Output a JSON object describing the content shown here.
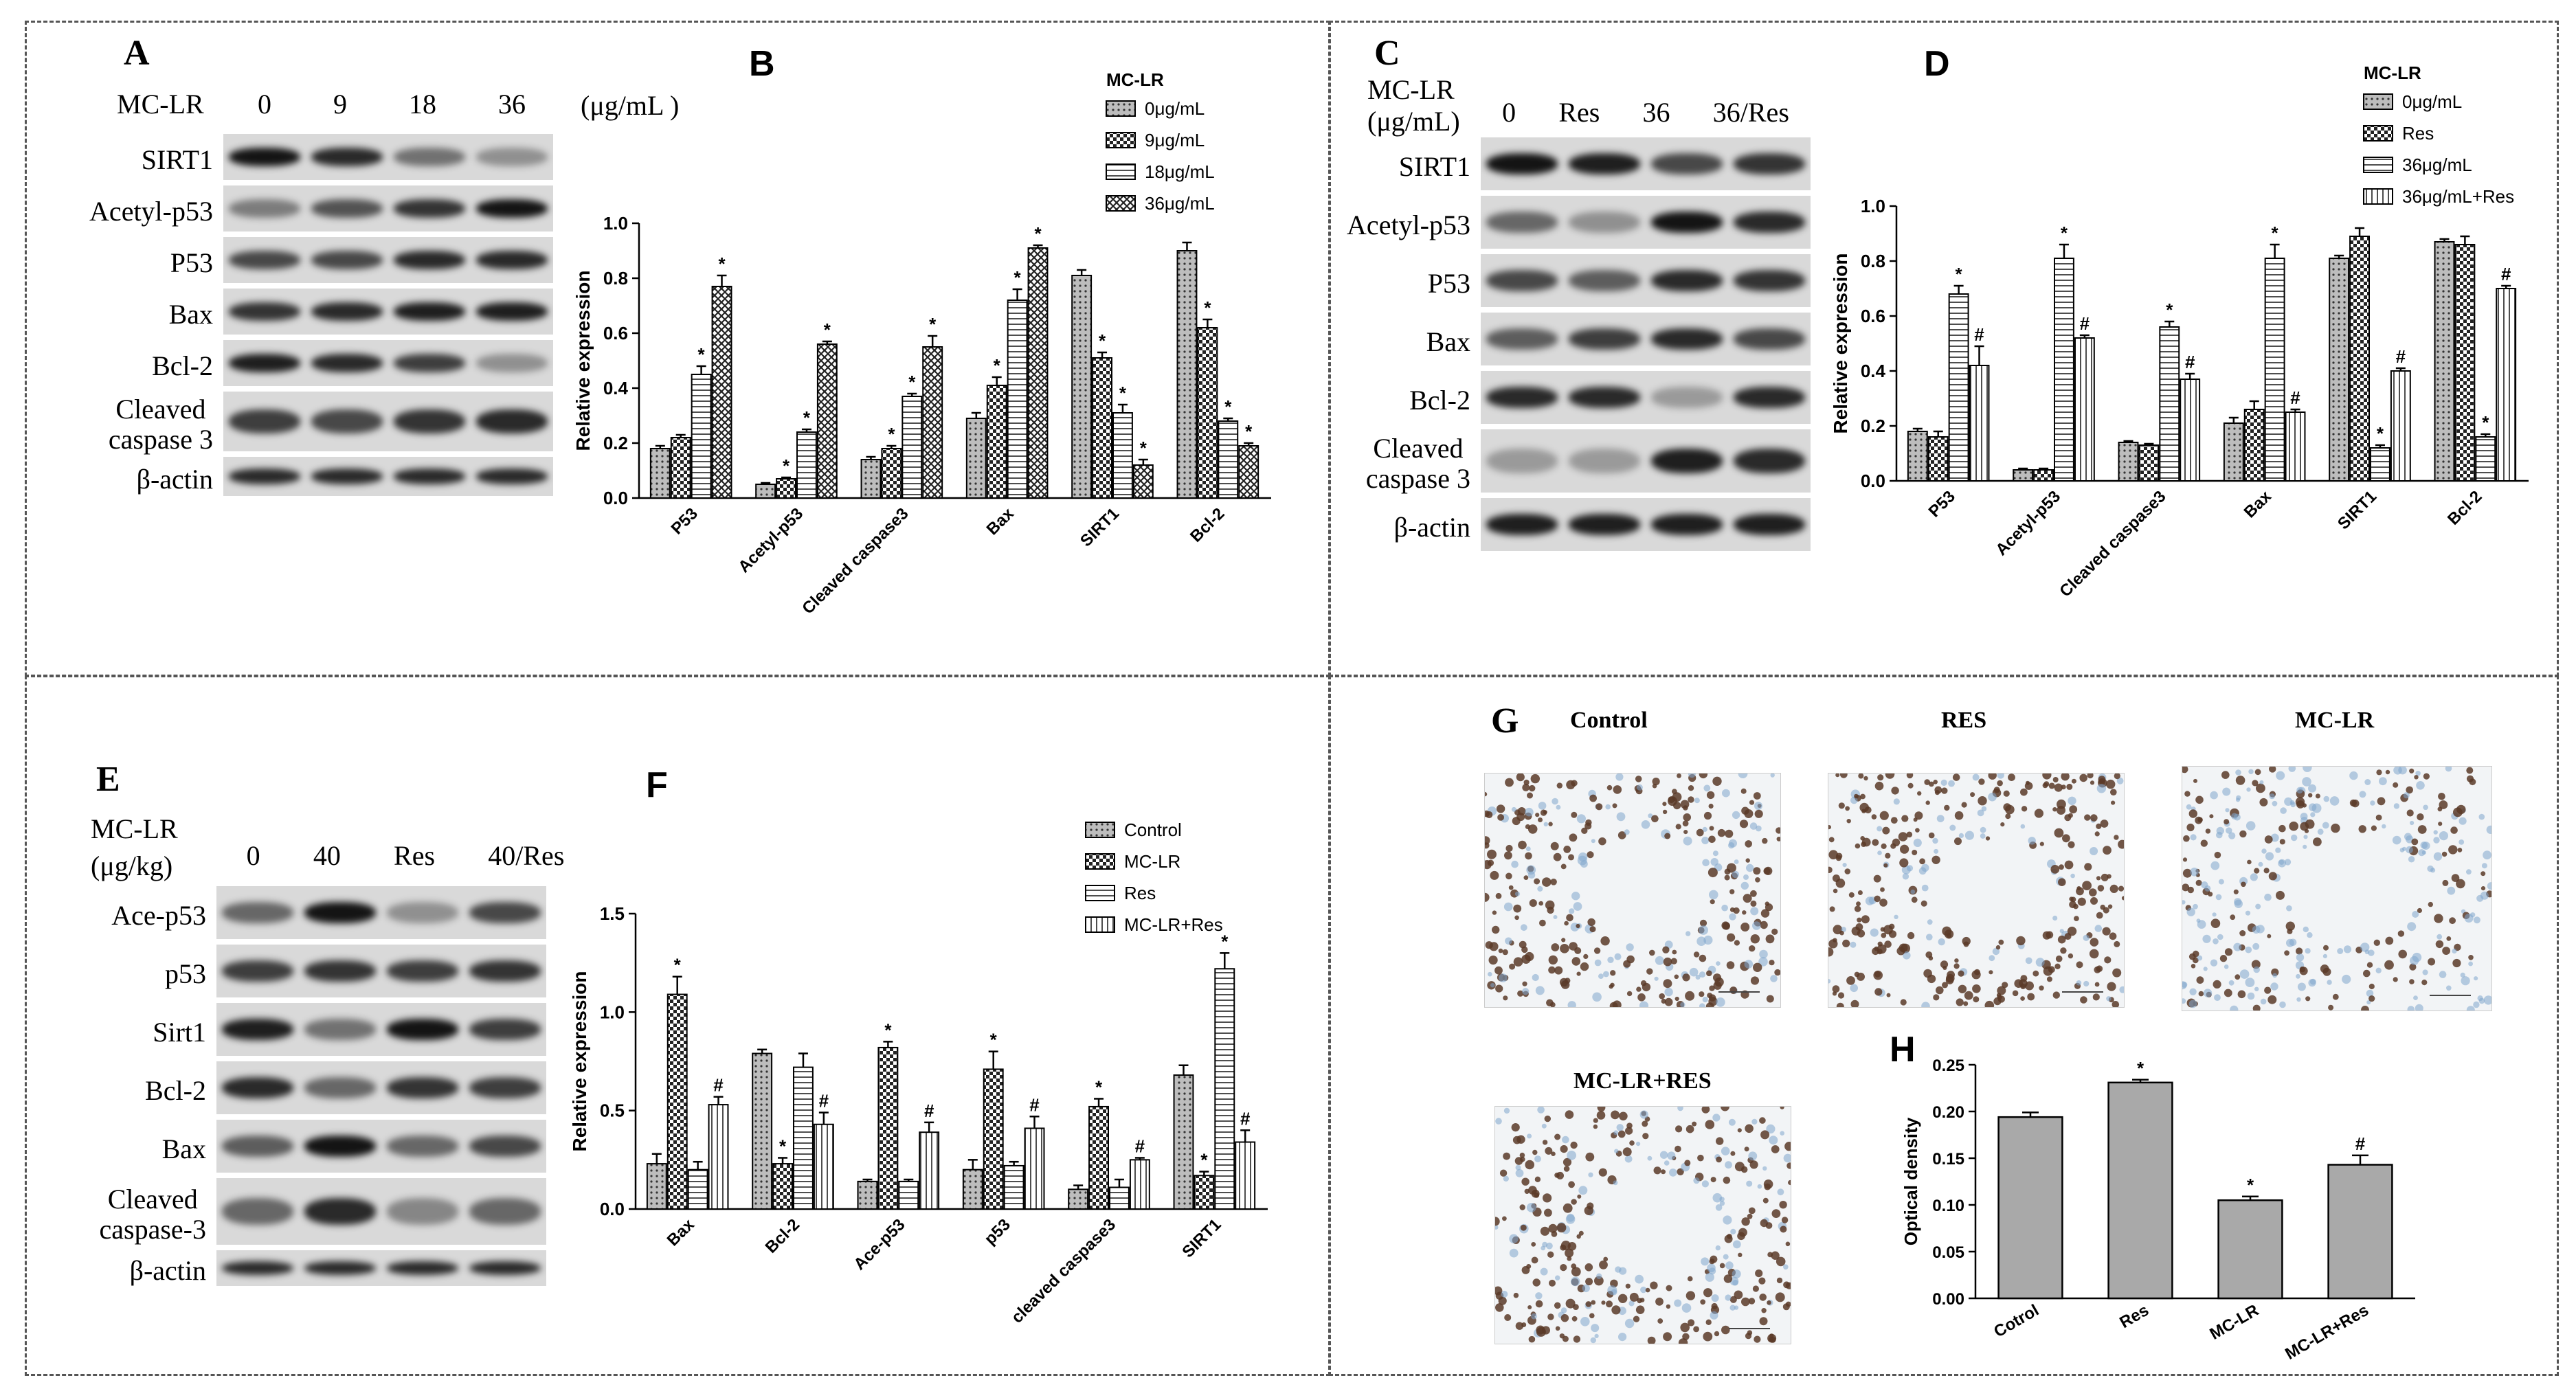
{
  "panels": {
    "A": {
      "label": "A",
      "treatment_label": "MC-LR",
      "doses": [
        "0",
        "9",
        "18",
        "36"
      ],
      "unit": "(μg/mL )",
      "blots": [
        "SIRT1",
        "Acetyl-p53",
        "P53",
        "Bax",
        "Bcl-2",
        "Cleaved\ncaspase 3",
        "β-actin"
      ]
    },
    "C": {
      "label": "C",
      "treatment_label": "MC-LR\n(μg/mL)",
      "groups": [
        "0",
        "Res",
        "36",
        "36/Res"
      ],
      "blots": [
        "SIRT1",
        "Acetyl-p53",
        "P53",
        "Bax",
        "Bcl-2",
        "Cleaved\ncaspase 3",
        "β-actin"
      ]
    },
    "E": {
      "label": "E",
      "treatment_label": "MC-LR\n(μg/kg)",
      "groups": [
        "0",
        "40",
        "Res",
        "40/Res"
      ],
      "blots": [
        "Ace-p53",
        "p53",
        "Sirt1",
        "Bcl-2",
        "Bax",
        "Cleaved\ncaspase-3",
        "β-actin"
      ]
    },
    "G": {
      "label": "G",
      "images": [
        "Control",
        "RES",
        "MC-LR",
        "MC-LR+RES"
      ]
    }
  },
  "chart_data": [
    {
      "panel": "B",
      "type": "bar",
      "legend_title": "MC-LR",
      "ylabel": "Relative expression",
      "ylim": [
        0,
        1.0
      ],
      "yticks": [
        "0.0",
        "0.2",
        "0.4",
        "0.6",
        "0.8",
        "1.0"
      ],
      "categories": [
        "P53",
        "Acetyl-p53",
        "Cleaved caspase3",
        "Bax",
        "SIRT1",
        "Bcl-2"
      ],
      "series": [
        {
          "name": "0μg/mL",
          "pattern": "dots",
          "values": [
            0.18,
            0.05,
            0.14,
            0.29,
            0.81,
            0.9
          ],
          "errors": [
            0.01,
            0.005,
            0.01,
            0.02,
            0.02,
            0.03
          ],
          "marks": [
            "",
            "",
            "",
            "",
            "",
            ""
          ]
        },
        {
          "name": "9μg/mL",
          "pattern": "check",
          "values": [
            0.22,
            0.07,
            0.18,
            0.41,
            0.51,
            0.62
          ],
          "errors": [
            0.01,
            0.005,
            0.01,
            0.03,
            0.02,
            0.03
          ],
          "marks": [
            "",
            "*",
            "*",
            "*",
            "*",
            "*"
          ]
        },
        {
          "name": "18μg/mL",
          "pattern": "hlines",
          "values": [
            0.45,
            0.24,
            0.37,
            0.72,
            0.31,
            0.28
          ],
          "errors": [
            0.03,
            0.01,
            0.01,
            0.04,
            0.03,
            0.01
          ],
          "marks": [
            "*",
            "*",
            "*",
            "*",
            "*",
            "*"
          ]
        },
        {
          "name": "36μg/mL",
          "pattern": "cross",
          "values": [
            0.77,
            0.56,
            0.55,
            0.91,
            0.12,
            0.19
          ],
          "errors": [
            0.04,
            0.01,
            0.04,
            0.01,
            0.02,
            0.01
          ],
          "marks": [
            "*",
            "*",
            "*",
            "*",
            "*",
            "*"
          ]
        }
      ]
    },
    {
      "panel": "D",
      "type": "bar",
      "legend_title": "MC-LR",
      "ylabel": "Relative expression",
      "ylim": [
        0,
        1.0
      ],
      "yticks": [
        "0.0",
        "0.2",
        "0.4",
        "0.6",
        "0.8",
        "1.0"
      ],
      "categories": [
        "P53",
        "Acetyl-p53",
        "Cleaved caspase3",
        "Bax",
        "SIRT1",
        "Bcl-2"
      ],
      "series": [
        {
          "name": "0μg/mL",
          "pattern": "dots",
          "values": [
            0.18,
            0.04,
            0.14,
            0.21,
            0.81,
            0.87
          ],
          "errors": [
            0.01,
            0.005,
            0.005,
            0.02,
            0.01,
            0.01
          ],
          "marks": [
            "",
            "",
            "",
            "",
            "",
            ""
          ]
        },
        {
          "name": "Res",
          "pattern": "check",
          "values": [
            0.16,
            0.04,
            0.13,
            0.26,
            0.89,
            0.86
          ],
          "errors": [
            0.02,
            0.005,
            0.005,
            0.03,
            0.03,
            0.03
          ],
          "marks": [
            "",
            "",
            "",
            "",
            "",
            ""
          ]
        },
        {
          "name": "36μg/mL",
          "pattern": "hlines",
          "values": [
            0.68,
            0.81,
            0.56,
            0.81,
            0.12,
            0.16
          ],
          "errors": [
            0.03,
            0.05,
            0.02,
            0.05,
            0.01,
            0.01
          ],
          "marks": [
            "*",
            "*",
            "*",
            "*",
            "*",
            "*"
          ]
        },
        {
          "name": "36μg/mL+Res",
          "pattern": "vlines",
          "values": [
            0.42,
            0.52,
            0.37,
            0.25,
            0.4,
            0.7
          ],
          "errors": [
            0.07,
            0.01,
            0.02,
            0.01,
            0.01,
            0.01
          ],
          "marks": [
            "#",
            "#",
            "#",
            "#",
            "#",
            "#"
          ]
        }
      ]
    },
    {
      "panel": "F",
      "type": "bar",
      "legend_title": "",
      "ylabel": "Relative expression",
      "ylim": [
        0,
        1.5
      ],
      "yticks": [
        "0.0",
        "0.5",
        "1.0",
        "1.5"
      ],
      "categories": [
        "Bax",
        "Bcl-2",
        "Ace-p53",
        "p53",
        "cleaved caspase3",
        "SIRT1"
      ],
      "series": [
        {
          "name": "Control",
          "pattern": "dots",
          "values": [
            0.23,
            0.79,
            0.14,
            0.2,
            0.1,
            0.68
          ],
          "errors": [
            0.05,
            0.02,
            0.01,
            0.05,
            0.02,
            0.05
          ],
          "marks": [
            "",
            "",
            "",
            "",
            "",
            ""
          ]
        },
        {
          "name": "MC-LR",
          "pattern": "check",
          "values": [
            1.09,
            0.23,
            0.82,
            0.71,
            0.52,
            0.17
          ],
          "errors": [
            0.09,
            0.03,
            0.03,
            0.09,
            0.04,
            0.02
          ],
          "marks": [
            "*",
            "*",
            "*",
            "*",
            "*",
            "*"
          ]
        },
        {
          "name": "Res",
          "pattern": "hlines",
          "values": [
            0.2,
            0.72,
            0.14,
            0.22,
            0.11,
            1.22
          ],
          "errors": [
            0.04,
            0.07,
            0.01,
            0.02,
            0.04,
            0.08
          ],
          "marks": [
            "",
            "",
            "",
            "",
            "",
            "*"
          ]
        },
        {
          "name": "MC-LR+Res",
          "pattern": "vlines",
          "values": [
            0.53,
            0.43,
            0.39,
            0.41,
            0.25,
            0.34
          ],
          "errors": [
            0.04,
            0.06,
            0.05,
            0.06,
            0.01,
            0.06
          ],
          "marks": [
            "#",
            "#",
            "#",
            "#",
            "#",
            "#"
          ]
        }
      ]
    },
    {
      "panel": "H",
      "type": "bar",
      "ylabel": "Optical density",
      "ylim": [
        0,
        0.25
      ],
      "yticks": [
        "0.00",
        "0.05",
        "0.10",
        "0.15",
        "0.20",
        "0.25"
      ],
      "categories": [
        "Cotrol",
        "Res",
        "MC-LR",
        "MC-LR+Res"
      ],
      "values": [
        0.194,
        0.231,
        0.105,
        0.143
      ],
      "errors": [
        0.005,
        0.003,
        0.004,
        0.01
      ],
      "marks": [
        "",
        "*",
        "*",
        "#"
      ]
    }
  ]
}
